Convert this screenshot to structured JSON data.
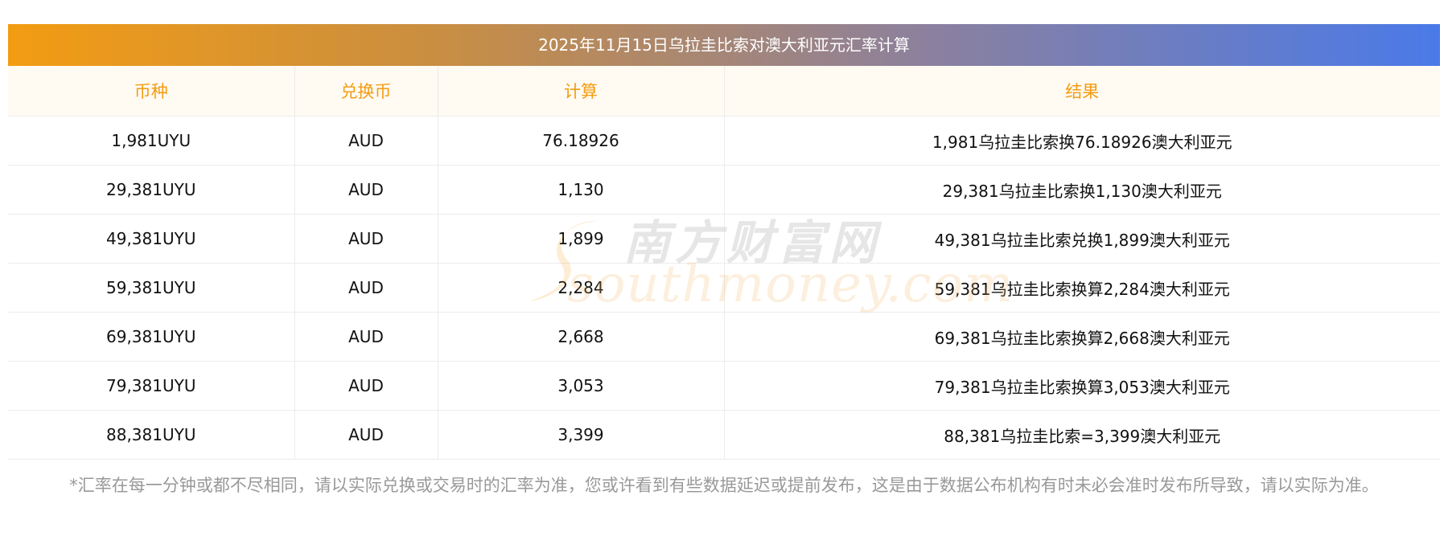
{
  "title": "2025年11月15日乌拉圭比索对澳大利亚元汇率计算",
  "headers": [
    "币种",
    "兑换币",
    "计算",
    "结果"
  ],
  "rows": [
    [
      "1,981UYU",
      "AUD",
      "76.18926",
      "1,981乌拉圭比索换76.18926澳大利亚元"
    ],
    [
      "29,381UYU",
      "AUD",
      "1,130",
      "29,381乌拉圭比索换1,130澳大利亚元"
    ],
    [
      "49,381UYU",
      "AUD",
      "1,899",
      "49,381乌拉圭比索兑换1,899澳大利亚元"
    ],
    [
      "59,381UYU",
      "AUD",
      "2,284",
      "59,381乌拉圭比索换算2,284澳大利亚元"
    ],
    [
      "69,381UYU",
      "AUD",
      "2,668",
      "69,381乌拉圭比索换算2,668澳大利亚元"
    ],
    [
      "79,381UYU",
      "AUD",
      "3,053",
      "79,381乌拉圭比索换算3,053澳大利亚元"
    ],
    [
      "88,381UYU",
      "AUD",
      "3,399",
      "88,381乌拉圭比索=3,399澳大利亚元"
    ]
  ],
  "watermark": {
    "cn": "南方财富网",
    "en": "southmoney.com"
  },
  "note": "*汇率在每一分钟或都不尽相同，请以实际兑换或交易时的汇率为准，您或许看到有些数据延迟或提前发布，这是由于数据公布机构有时未必会准时发布所导致，请以实际为准。",
  "colors": {
    "header_text": "#f39c12",
    "header_bg": "#fffaf2",
    "title_gradient_start": "#f39c12",
    "title_gradient_end": "#4a7ae8",
    "note_text": "#999999"
  }
}
